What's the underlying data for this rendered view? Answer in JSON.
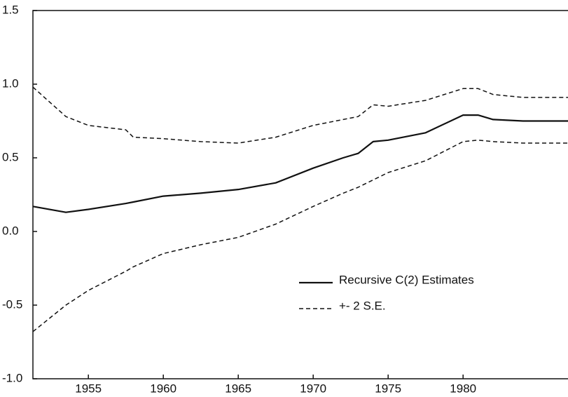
{
  "chart_data": {
    "type": "line",
    "x": [
      1951.3,
      1953.5,
      1955,
      1957.5,
      1958,
      1960,
      1962.5,
      1965,
      1967.5,
      1970,
      1972,
      1973,
      1974,
      1975,
      1977.5,
      1980,
      1981,
      1982,
      1984,
      1987
    ],
    "series": [
      {
        "name": "Recursive C(2) Estimates",
        "color": "#111111",
        "dash": false,
        "values": [
          0.17,
          0.13,
          0.15,
          0.19,
          0.2,
          0.24,
          0.26,
          0.285,
          0.33,
          0.43,
          0.5,
          0.53,
          0.61,
          0.62,
          0.67,
          0.79,
          0.79,
          0.76,
          0.75,
          0.75
        ]
      },
      {
        "name": "+- 2 S.E.",
        "color": "#111111",
        "dash": true,
        "values": [
          0.98,
          0.78,
          0.72,
          0.69,
          0.64,
          0.63,
          0.61,
          0.6,
          0.64,
          0.72,
          0.76,
          0.78,
          0.86,
          0.85,
          0.89,
          0.97,
          0.97,
          0.93,
          0.91,
          0.91
        ]
      },
      {
        "color": "#111111",
        "dash": true,
        "values": [
          -0.68,
          -0.5,
          -0.4,
          -0.27,
          -0.24,
          -0.15,
          -0.09,
          -0.04,
          0.05,
          0.17,
          0.26,
          0.3,
          0.35,
          0.4,
          0.48,
          0.61,
          0.62,
          0.61,
          0.6,
          0.6
        ]
      }
    ],
    "xlim": [
      1951.3,
      1987
    ],
    "xticks": [
      1955,
      1960,
      1965,
      1970,
      1975,
      1980
    ],
    "ylim": [
      -1.0,
      1.5
    ],
    "yticks": [
      {
        "value": -1.0,
        "label": "-1.0"
      },
      {
        "value": -0.5,
        "label": "-0.5"
      },
      {
        "value": 0.0,
        "label": "0.0"
      },
      {
        "value": 0.5,
        "label": "0.5"
      },
      {
        "value": 1.0,
        "label": "1.0"
      },
      {
        "value": 1.5,
        "label": "1.5"
      }
    ]
  }
}
